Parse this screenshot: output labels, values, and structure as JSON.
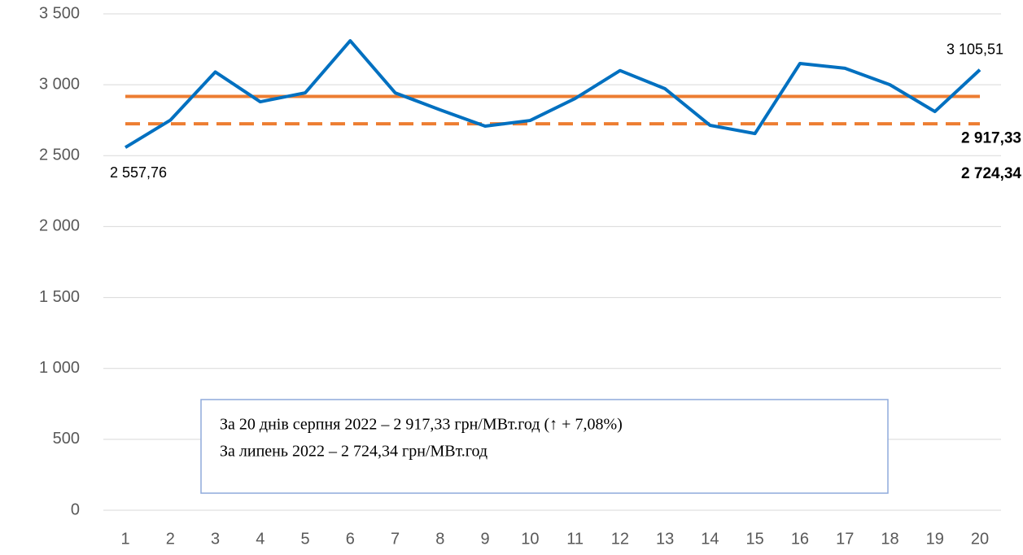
{
  "chart_data": {
    "type": "line",
    "categories": [
      "1",
      "2",
      "3",
      "4",
      "5",
      "6",
      "7",
      "8",
      "9",
      "10",
      "11",
      "12",
      "13",
      "14",
      "15",
      "16",
      "17",
      "18",
      "19",
      "20"
    ],
    "series": [
      {
        "color": "#0070c0",
        "values": [
          2557.76,
          2750,
          3090,
          2880,
          2943,
          3310,
          2943,
          2823,
          2708,
          2748,
          2903,
          3100,
          2972,
          2714,
          2656,
          3150,
          3116,
          3000,
          2811,
          3105.51
        ],
        "value_labels": [
          "2 557,76",
          null,
          null,
          null,
          null,
          null,
          null,
          null,
          null,
          null,
          null,
          null,
          null,
          null,
          null,
          null,
          null,
          null,
          null,
          "3 105,51"
        ]
      }
    ],
    "reference_lines": [
      {
        "value": 2917.33,
        "label": "2 917,33",
        "color": "#ed7d31",
        "style": "solid"
      },
      {
        "value": 2724.34,
        "label": "2 724,34",
        "color": "#ed7d31",
        "style": "dashed"
      }
    ],
    "ylim": [
      0,
      3500
    ],
    "yticks": [
      {
        "value": 0,
        "label": "0"
      },
      {
        "value": 500,
        "label": "500"
      },
      {
        "value": 1000,
        "label": "1 000"
      },
      {
        "value": 1500,
        "label": "1 500"
      },
      {
        "value": 2000,
        "label": "2 000"
      },
      {
        "value": 2500,
        "label": "2 500"
      },
      {
        "value": 3000,
        "label": "3 000"
      },
      {
        "value": 3500,
        "label": "3 500"
      }
    ],
    "grid": true,
    "annotations": [
      "За 20 днів серпня 2022 – 2 917,33 грн/МВт.год (↑ + 7,08%)",
      "За липень 2022 – 2 724,34 грн/МВт.год"
    ]
  }
}
